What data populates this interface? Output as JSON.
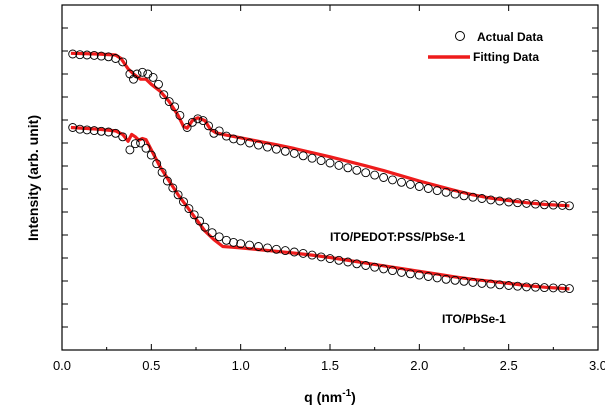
{
  "chart_data": {
    "type": "scatter",
    "xlabel": "q (nm",
    "xlabel_sup": "-1",
    "xlabel_end": ")",
    "ylabel": "Intensity (arb. unit)",
    "xlim": [
      0.0,
      3.0
    ],
    "ylim": [
      0,
      1
    ],
    "x_ticks": [
      "0.0",
      "0.5",
      "1.0",
      "1.5",
      "2.0",
      "2.5",
      "3.0"
    ],
    "y_ticks_labeled": false,
    "legend": {
      "position": "top-right",
      "entries": [
        {
          "label": "Actual Data",
          "marker": "open-circle"
        },
        {
          "label": "Fitting Data",
          "marker": "line"
        }
      ]
    },
    "colors": {
      "fit": "#ee1c1c",
      "data": "#000000"
    },
    "series": [
      {
        "name": "ITO/PEDOT:PSS/PbSe-1",
        "data_points": {
          "x": [
            0.06,
            0.1,
            0.14,
            0.18,
            0.22,
            0.26,
            0.3,
            0.34,
            0.38,
            0.4,
            0.42,
            0.45,
            0.48,
            0.51,
            0.54,
            0.57,
            0.6,
            0.63,
            0.66,
            0.7,
            0.73,
            0.76,
            0.79,
            0.82,
            0.85,
            0.88,
            0.92,
            0.96,
            1.0,
            1.05,
            1.1,
            1.15,
            1.2,
            1.25,
            1.3,
            1.35,
            1.4,
            1.45,
            1.5,
            1.55,
            1.6,
            1.65,
            1.7,
            1.75,
            1.8,
            1.85,
            1.9,
            1.95,
            2.0,
            2.05,
            2.1,
            2.15,
            2.2,
            2.25,
            2.3,
            2.35,
            2.4,
            2.45,
            2.5,
            2.55,
            2.6,
            2.65,
            2.7,
            2.75,
            2.8,
            2.84
          ],
          "y": [
            0.858,
            0.856,
            0.855,
            0.854,
            0.852,
            0.85,
            0.845,
            0.835,
            0.8,
            0.785,
            0.8,
            0.805,
            0.8,
            0.79,
            0.77,
            0.74,
            0.72,
            0.705,
            0.68,
            0.645,
            0.66,
            0.67,
            0.665,
            0.65,
            0.628,
            0.635,
            0.62,
            0.612,
            0.606,
            0.6,
            0.594,
            0.588,
            0.582,
            0.576,
            0.57,
            0.563,
            0.556,
            0.549,
            0.542,
            0.535,
            0.528,
            0.521,
            0.514,
            0.507,
            0.5,
            0.493,
            0.486,
            0.48,
            0.474,
            0.468,
            0.462,
            0.457,
            0.452,
            0.447,
            0.443,
            0.439,
            0.435,
            0.432,
            0.429,
            0.427,
            0.425,
            0.423,
            0.421,
            0.42,
            0.419,
            0.418
          ]
        },
        "fit": {
          "x": [
            0.05,
            0.2,
            0.3,
            0.33,
            0.37,
            0.4,
            0.44,
            0.47,
            0.5,
            0.55,
            0.6,
            0.65,
            0.68,
            0.7,
            0.73,
            0.76,
            0.8,
            0.83,
            0.86,
            0.9,
            1.0,
            1.1,
            1.2,
            1.3,
            1.4,
            1.5,
            1.6,
            1.7,
            1.8,
            1.9,
            2.0,
            2.1,
            2.2,
            2.3,
            2.4,
            2.5,
            2.6,
            2.7,
            2.84
          ],
          "y": [
            0.86,
            0.858,
            0.855,
            0.845,
            0.815,
            0.8,
            0.785,
            0.785,
            0.77,
            0.75,
            0.72,
            0.68,
            0.648,
            0.643,
            0.665,
            0.673,
            0.665,
            0.64,
            0.63,
            0.625,
            0.615,
            0.605,
            0.595,
            0.584,
            0.572,
            0.56,
            0.547,
            0.534,
            0.52,
            0.505,
            0.49,
            0.476,
            0.462,
            0.45,
            0.44,
            0.433,
            0.427,
            0.422,
            0.418
          ]
        },
        "label_position": "right"
      },
      {
        "name": "ITO/PbSe-1",
        "data_points": {
          "x": [
            0.06,
            0.1,
            0.14,
            0.18,
            0.22,
            0.26,
            0.3,
            0.34,
            0.38,
            0.41,
            0.44,
            0.47,
            0.5,
            0.53,
            0.56,
            0.59,
            0.62,
            0.65,
            0.68,
            0.71,
            0.74,
            0.77,
            0.8,
            0.84,
            0.88,
            0.92,
            0.96,
            1.0,
            1.05,
            1.1,
            1.15,
            1.2,
            1.25,
            1.3,
            1.35,
            1.4,
            1.45,
            1.5,
            1.55,
            1.6,
            1.65,
            1.7,
            1.75,
            1.8,
            1.85,
            1.9,
            1.95,
            2.0,
            2.05,
            2.1,
            2.15,
            2.2,
            2.25,
            2.3,
            2.35,
            2.4,
            2.45,
            2.5,
            2.55,
            2.6,
            2.65,
            2.7,
            2.75,
            2.8,
            2.84
          ],
          "y": [
            0.645,
            0.64,
            0.638,
            0.636,
            0.634,
            0.632,
            0.628,
            0.618,
            0.58,
            0.598,
            0.6,
            0.585,
            0.565,
            0.54,
            0.515,
            0.49,
            0.47,
            0.45,
            0.43,
            0.41,
            0.392,
            0.374,
            0.356,
            0.34,
            0.328,
            0.318,
            0.312,
            0.308,
            0.304,
            0.3,
            0.296,
            0.292,
            0.288,
            0.284,
            0.28,
            0.275,
            0.27,
            0.265,
            0.26,
            0.255,
            0.25,
            0.245,
            0.24,
            0.235,
            0.23,
            0.225,
            0.221,
            0.217,
            0.213,
            0.209,
            0.205,
            0.202,
            0.199,
            0.196,
            0.193,
            0.191,
            0.189,
            0.187,
            0.185,
            0.183,
            0.182,
            0.181,
            0.18,
            0.179,
            0.178
          ]
        },
        "fit": {
          "x": [
            0.05,
            0.2,
            0.3,
            0.34,
            0.37,
            0.39,
            0.41,
            0.43,
            0.45,
            0.47,
            0.5,
            0.55,
            0.6,
            0.65,
            0.7,
            0.75,
            0.8,
            0.85,
            0.9,
            0.95,
            1.0,
            1.1,
            1.2,
            1.3,
            1.4,
            1.5,
            1.6,
            1.7,
            1.8,
            1.9,
            2.0,
            2.1,
            2.2,
            2.3,
            2.4,
            2.5,
            2.6,
            2.7,
            2.84
          ],
          "y": [
            0.645,
            0.64,
            0.635,
            0.625,
            0.605,
            0.625,
            0.618,
            0.608,
            0.613,
            0.61,
            0.58,
            0.53,
            0.49,
            0.45,
            0.415,
            0.38,
            0.345,
            0.32,
            0.3,
            0.298,
            0.296,
            0.291,
            0.286,
            0.281,
            0.275,
            0.268,
            0.26,
            0.252,
            0.244,
            0.236,
            0.228,
            0.22,
            0.212,
            0.205,
            0.199,
            0.193,
            0.187,
            0.182,
            0.177
          ]
        },
        "label_position": "right"
      }
    ]
  }
}
